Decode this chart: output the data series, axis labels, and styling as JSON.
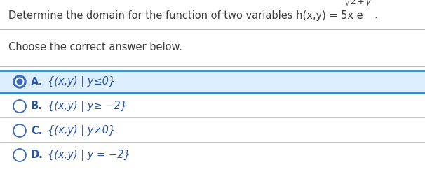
{
  "title_main": "Determine the domain for the function of two variables h(x,y) = 5x e",
  "title_exponent": "$\\sqrt{2+y}$",
  "title_period": ".",
  "subtitle": "Choose the correct answer below.",
  "options": [
    {
      "label": "A.",
      "text": "{(x,y) | y≤0}",
      "selected": true
    },
    {
      "label": "B.",
      "text": "{(x,y) | y≥ −2}",
      "selected": false
    },
    {
      "label": "C.",
      "text": "{(x,y) | y≠0}",
      "selected": false
    },
    {
      "label": "D.",
      "text": "{(x,y) | y = −2}",
      "selected": false
    }
  ],
  "bg_color": "#ffffff",
  "text_color": "#3d3d3d",
  "option_color": "#2855a0",
  "selected_bg": "#ddeeff",
  "selected_border": "#2e86c1",
  "circle_color": "#3a6bbf",
  "hr_color": "#bbbbbb",
  "font_size_title": 10.5,
  "font_size_option": 10.5,
  "font_size_subtitle": 10.5
}
